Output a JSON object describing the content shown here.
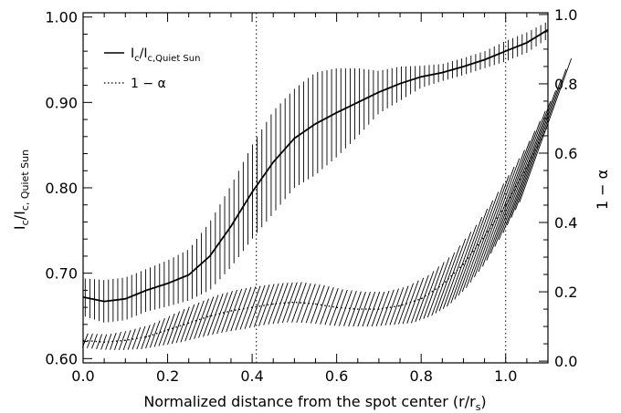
{
  "chart_data": {
    "type": "line",
    "xlabel": "Normalized distance from the spot center (r/r",
    "xlabel_sub": "s",
    "xlabel_end": ")",
    "ylabel_left": {
      "base": "I",
      "sub1": "c",
      "mid": "/I",
      "sub2": "c, Quiet Sun"
    },
    "ylabel_right": "1 − α",
    "xlim": [
      0.0,
      1.1
    ],
    "ylim_left": [
      0.595,
      1.005
    ],
    "ylim_right": [
      -0.005,
      1.005
    ],
    "x_ticks": [
      "0.0",
      "0.2",
      "0.4",
      "0.6",
      "0.8",
      "1.0"
    ],
    "y_left_ticks": [
      "0.60",
      "0.70",
      "0.80",
      "0.90",
      "1.00"
    ],
    "y_right_ticks": [
      "0.0",
      "0.2",
      "0.4",
      "0.6",
      "0.8",
      "1.0"
    ],
    "vlines": [
      0.41,
      1.0
    ],
    "legend": {
      "position": "top-left",
      "entries": [
        {
          "main": "I",
          "sub1": "c",
          "mid": "/I",
          "sub2": "c,Quiet Sun",
          "style": "solid"
        },
        {
          "main": "1 − α",
          "style": "dotted"
        }
      ]
    },
    "series": [
      {
        "axis": "left",
        "style": "solid",
        "error_style": "vertical",
        "x": [
          0.0,
          0.05,
          0.1,
          0.15,
          0.2,
          0.25,
          0.3,
          0.35,
          0.4,
          0.45,
          0.5,
          0.55,
          0.6,
          0.65,
          0.7,
          0.75,
          0.8,
          0.85,
          0.9,
          0.95,
          1.0,
          1.05,
          1.1
        ],
        "y": [
          0.672,
          0.667,
          0.67,
          0.68,
          0.688,
          0.698,
          0.72,
          0.755,
          0.795,
          0.83,
          0.858,
          0.875,
          0.888,
          0.9,
          0.912,
          0.922,
          0.93,
          0.935,
          0.942,
          0.95,
          0.96,
          0.97,
          0.985
        ],
        "err": [
          0.022,
          0.025,
          0.025,
          0.025,
          0.027,
          0.03,
          0.04,
          0.048,
          0.055,
          0.06,
          0.058,
          0.06,
          0.052,
          0.04,
          0.025,
          0.02,
          0.013,
          0.01,
          0.01,
          0.01,
          0.012,
          0.012,
          0.01
        ]
      },
      {
        "axis": "right",
        "style": "dotted",
        "error_style": "slanted",
        "x": [
          0.0,
          0.05,
          0.1,
          0.15,
          0.2,
          0.25,
          0.3,
          0.35,
          0.4,
          0.45,
          0.5,
          0.55,
          0.6,
          0.65,
          0.7,
          0.75,
          0.8,
          0.85,
          0.9,
          0.95,
          1.0,
          1.05,
          1.1
        ],
        "y": [
          0.06,
          0.055,
          0.06,
          0.07,
          0.09,
          0.11,
          0.13,
          0.145,
          0.155,
          0.165,
          0.17,
          0.165,
          0.155,
          0.15,
          0.15,
          0.16,
          0.18,
          0.22,
          0.28,
          0.36,
          0.45,
          0.56,
          0.68
        ],
        "err": [
          0.02,
          0.022,
          0.028,
          0.035,
          0.045,
          0.055,
          0.06,
          0.062,
          0.062,
          0.06,
          0.058,
          0.055,
          0.052,
          0.05,
          0.05,
          0.055,
          0.07,
          0.09,
          0.12,
          0.15,
          0.17,
          0.19,
          0.21
        ]
      }
    ]
  }
}
